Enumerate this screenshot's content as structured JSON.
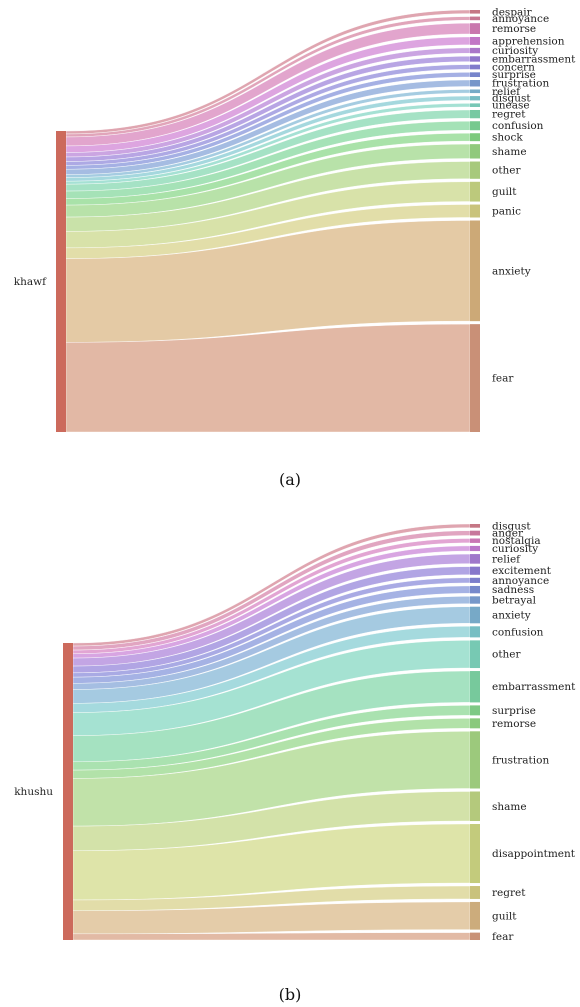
{
  "chart_data": [
    {
      "type": "sankey",
      "caption": "(a)",
      "source": "khawf",
      "source_color": "#cc6a5c",
      "targets": [
        {
          "label": "despair",
          "value": 1.0,
          "color": "#d27f8e"
        },
        {
          "label": "annoyance",
          "value": 1.0,
          "color": "#d47f9c"
        },
        {
          "label": "remorse",
          "value": 3.0,
          "color": "#d67fb8"
        },
        {
          "label": "apprehension",
          "value": 2.2,
          "color": "#cf7fd3"
        },
        {
          "label": "curiosity",
          "value": 1.5,
          "color": "#b57fd6"
        },
        {
          "label": "embarrassment",
          "value": 1.5,
          "color": "#9a7fd8"
        },
        {
          "label": "concern",
          "value": 1.3,
          "color": "#8a84d8"
        },
        {
          "label": "surprise",
          "value": 1.3,
          "color": "#7f8ed8"
        },
        {
          "label": "frustration",
          "value": 1.8,
          "color": "#7fa0d6"
        },
        {
          "label": "relief",
          "value": 1.0,
          "color": "#7fb6d4"
        },
        {
          "label": "disgust",
          "value": 1.2,
          "color": "#7fc8d0"
        },
        {
          "label": "unease",
          "value": 1.0,
          "color": "#7fd4c2"
        },
        {
          "label": "regret",
          "value": 2.3,
          "color": "#7fd6ad"
        },
        {
          "label": "confusion",
          "value": 2.5,
          "color": "#7fd698"
        },
        {
          "label": "shock",
          "value": 2.2,
          "color": "#84d684"
        },
        {
          "label": "shame",
          "value": 4.0,
          "color": "#9ad684"
        },
        {
          "label": "other",
          "value": 4.8,
          "color": "#b2d684"
        },
        {
          "label": "guilt",
          "value": 5.5,
          "color": "#c8d684"
        },
        {
          "label": "panic",
          "value": 3.6,
          "color": "#d6d084"
        },
        {
          "label": "anxiety",
          "value": 28.0,
          "color": "#d9b47f"
        },
        {
          "label": "fear",
          "value": 30.0,
          "color": "#d69a7f"
        }
      ]
    },
    {
      "type": "sankey",
      "caption": "(b)",
      "source": "khushu",
      "source_color": "#cc6a5c",
      "targets": [
        {
          "label": "disgust",
          "value": 1.0,
          "color": "#d27f8e"
        },
        {
          "label": "anger",
          "value": 1.3,
          "color": "#d47fa6"
        },
        {
          "label": "nostalgia",
          "value": 1.2,
          "color": "#d67fc0"
        },
        {
          "label": "curiosity",
          "value": 1.4,
          "color": "#c77fd6"
        },
        {
          "label": "relief",
          "value": 2.6,
          "color": "#a97fd8"
        },
        {
          "label": "excitement",
          "value": 2.2,
          "color": "#907fd8"
        },
        {
          "label": "annoyance",
          "value": 1.4,
          "color": "#8486d8"
        },
        {
          "label": "sadness",
          "value": 2.0,
          "color": "#7f92d8"
        },
        {
          "label": "betrayal",
          "value": 2.0,
          "color": "#7fa2d6"
        },
        {
          "label": "anxiety",
          "value": 4.5,
          "color": "#7fb4d4"
        },
        {
          "label": "confusion",
          "value": 3.0,
          "color": "#7fcad0"
        },
        {
          "label": "other",
          "value": 7.5,
          "color": "#7fd6bf"
        },
        {
          "label": "embarrassment",
          "value": 8.5,
          "color": "#7fd6a6"
        },
        {
          "label": "surprise",
          "value": 2.7,
          "color": "#86d68e"
        },
        {
          "label": "remorse",
          "value": 2.7,
          "color": "#92d684"
        },
        {
          "label": "frustration",
          "value": 15.5,
          "color": "#a6d684"
        },
        {
          "label": "shame",
          "value": 8.0,
          "color": "#c0d684"
        },
        {
          "label": "disappointment",
          "value": 16.0,
          "color": "#d0d884"
        },
        {
          "label": "regret",
          "value": 3.5,
          "color": "#d6cf84"
        },
        {
          "label": "guilt",
          "value": 7.5,
          "color": "#d9b784"
        },
        {
          "label": "fear",
          "value": 2.0,
          "color": "#d69c7f"
        }
      ]
    }
  ]
}
